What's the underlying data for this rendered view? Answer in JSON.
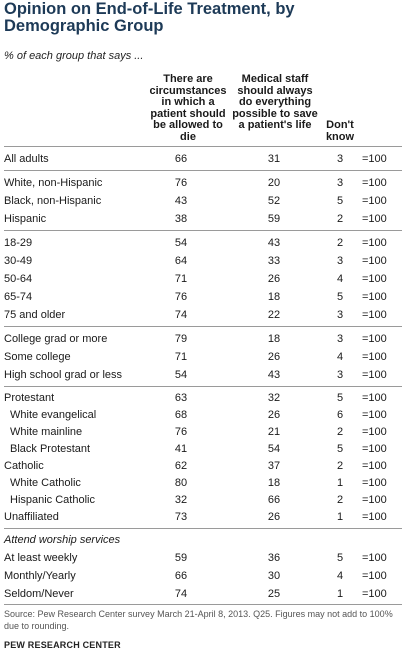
{
  "title": "Opinion on End-of-Life Treatment, by Demographic Group",
  "subtitle": "% of each group that says ...",
  "columns": {
    "col1": "There are circumstances in which a patient should be allowed to die",
    "col2": "Medical staff should always do everything possible to save a patient's life",
    "col3": "Don't know"
  },
  "rows": [
    {
      "label": "All adults",
      "a": "66",
      "b": "31",
      "c": "3",
      "t": "=100"
    },
    {
      "label": "White, non-Hispanic",
      "a": "76",
      "b": "20",
      "c": "3",
      "t": "=100"
    },
    {
      "label": "Black, non-Hispanic",
      "a": "43",
      "b": "52",
      "c": "5",
      "t": "=100"
    },
    {
      "label": "Hispanic",
      "a": "38",
      "b": "59",
      "c": "2",
      "t": "=100"
    },
    {
      "label": "18-29",
      "a": "54",
      "b": "43",
      "c": "2",
      "t": "=100"
    },
    {
      "label": "30-49",
      "a": "64",
      "b": "33",
      "c": "3",
      "t": "=100"
    },
    {
      "label": "50-64",
      "a": "71",
      "b": "26",
      "c": "4",
      "t": "=100"
    },
    {
      "label": "65-74",
      "a": "76",
      "b": "18",
      "c": "5",
      "t": "=100"
    },
    {
      "label": "75 and older",
      "a": "74",
      "b": "22",
      "c": "3",
      "t": "=100"
    },
    {
      "label": "College grad or more",
      "a": "79",
      "b": "18",
      "c": "3",
      "t": "=100"
    },
    {
      "label": "Some college",
      "a": "71",
      "b": "26",
      "c": "4",
      "t": "=100"
    },
    {
      "label": "High school grad or less",
      "a": "54",
      "b": "43",
      "c": "3",
      "t": "=100"
    },
    {
      "label": "Protestant",
      "a": "63",
      "b": "32",
      "c": "5",
      "t": "=100"
    },
    {
      "label": "White evangelical",
      "a": "68",
      "b": "26",
      "c": "6",
      "t": "=100"
    },
    {
      "label": "White mainline",
      "a": "76",
      "b": "21",
      "c": "2",
      "t": "=100"
    },
    {
      "label": "Black Protestant",
      "a": "41",
      "b": "54",
      "c": "5",
      "t": "=100"
    },
    {
      "label": "Catholic",
      "a": "62",
      "b": "37",
      "c": "2",
      "t": "=100"
    },
    {
      "label": "White Catholic",
      "a": "80",
      "b": "18",
      "c": "1",
      "t": "=100"
    },
    {
      "label": "Hispanic Catholic",
      "a": "32",
      "b": "66",
      "c": "2",
      "t": "=100"
    },
    {
      "label": "Unaffiliated",
      "a": "73",
      "b": "26",
      "c": "1",
      "t": "=100"
    },
    {
      "label": "Attend worship services"
    },
    {
      "label": "At least weekly",
      "a": "59",
      "b": "36",
      "c": "5",
      "t": "=100"
    },
    {
      "label": "Monthly/Yearly",
      "a": "66",
      "b": "30",
      "c": "4",
      "t": "=100"
    },
    {
      "label": "Seldom/Never",
      "a": "74",
      "b": "25",
      "c": "1",
      "t": "=100"
    }
  ],
  "source": "Source: Pew Research Center survey March 21-April 8, 2013. Q25. Figures may not add to 100% due to rounding.",
  "organization": "PEW RESEARCH CENTER"
}
